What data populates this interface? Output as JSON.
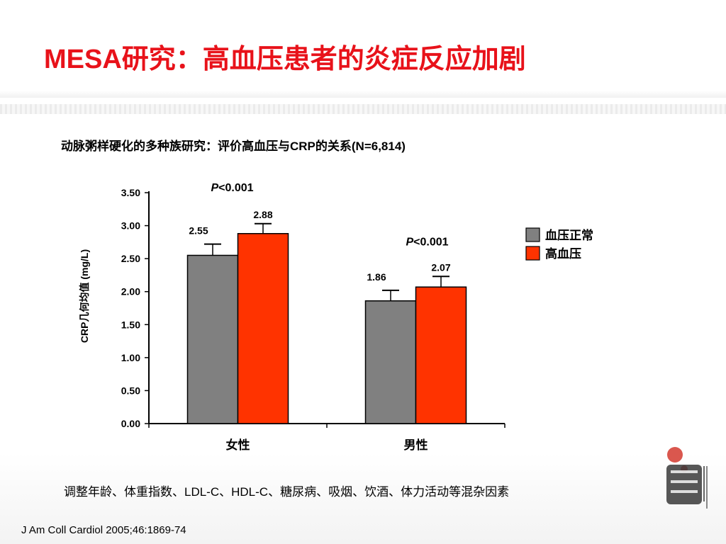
{
  "slide": {
    "title": "MESA研究：高血压患者的炎症反应加剧",
    "subtitle": "动脉粥样硬化的多种族研究：评价高血压与CRP的关系(N=6,814)",
    "footnote": "调整年龄、体重指数、LDL-C、HDL-C、糖尿病、吸烟、饮酒、体力活动等混杂因素",
    "reference": "J Am Coll Cardiol 2005;46:1869-74"
  },
  "chart_data": {
    "type": "bar",
    "categories": [
      "女性",
      "男性"
    ],
    "series": [
      {
        "name": "血压正常",
        "color": "#808080",
        "values": [
          2.55,
          1.86
        ],
        "error": [
          0.17,
          0.16
        ],
        "labels": [
          "2.55",
          "1.86"
        ]
      },
      {
        "name": "高血压",
        "color": "#ff3300",
        "values": [
          2.88,
          2.07
        ],
        "error": [
          0.15,
          0.16
        ],
        "labels": [
          "2.88",
          "2.07"
        ]
      }
    ],
    "ylabel": "CRP几何均值 (mg/L)",
    "ylim": [
      0,
      3.5
    ],
    "yticks": [
      "0.00",
      "0.50",
      "1.00",
      "1.50",
      "2.00",
      "2.50",
      "3.00",
      "3.50"
    ],
    "p_values": [
      {
        "category": "女性",
        "label": "P",
        "value": "<0.001"
      },
      {
        "category": "男性",
        "label": "P",
        "value": "<0.001"
      }
    ],
    "legend": "right",
    "grid": false
  }
}
